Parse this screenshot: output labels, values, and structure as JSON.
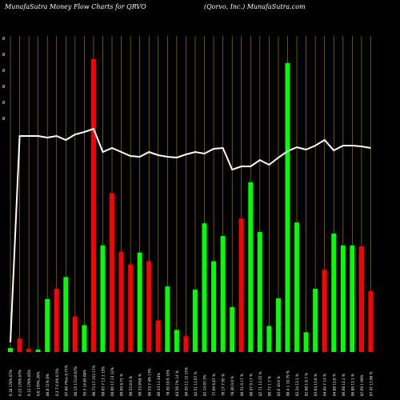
{
  "header": {
    "title": "MunafaSutra  Money Flow  Charts for QRVO",
    "subtitle": "(Qorvo,  Inc.) MunafaSutra.com"
  },
  "y_tick_labels": [
    "8",
    "8",
    "8",
    "8",
    "8",
    "8"
  ],
  "colors": {
    "background": "#000000",
    "up": "#00ff00",
    "down": "#ff0000",
    "grid": "#b8860b",
    "line": "#ffffff"
  },
  "chart_data": {
    "type": "bar",
    "title": "MunafaSutra  Money Flow  Charts for QRVO",
    "categories": [
      "0.18 170%.67%",
      "0.23 170%.87%",
      "0.12 170%.85%",
      "0.0 170%.20%",
      "80.0 11% 8%",
      "0.2 7 6 0% 0.5%",
      "97.00 7%m 6.77%",
      "00.15 17110 87%",
      "95.5 14 85.00%",
      "90.73 17.153 17%",
      "00.05 7 13.1 15%",
      "00.00 17.13 12%",
      "89.69 8.75 %",
      "90.53 8.6 %",
      "90.53 8%8 %",
      "80.53 7 4% 13%",
      "86.33 11 44%",
      "78.50 10.9 15%",
      "83.50 7% 14 %",
      "80.59 11.15 15%",
      "82.51 11.07 %",
      "82.14 07.3%",
      "77.69 6.87 %",
      "76.17 7.95 %",
      "78.30 0.0 %",
      "80.51 0.17 %",
      "80.57 0.17 %",
      "82.71 13.25 %",
      "80.77 1.7 %",
      "85.6 10.0 %",
      "80.4 1 10.79 %",
      "82.34 13.1 %",
      "82.98 1 8.7 %",
      "83.64 13.0 %",
      "84.44 7 13 %",
      "84.88 13.0 %",
      "86.08 13.1 %",
      "86.89 13.1 %",
      "87.69 1 09%",
      "87.47 13.90 %"
    ],
    "colors": [
      "green",
      "red",
      "red",
      "green",
      "green",
      "red",
      "green",
      "red",
      "green",
      "red",
      "green",
      "red",
      "red",
      "red",
      "green",
      "red",
      "red",
      "green",
      "green",
      "red",
      "green",
      "green",
      "green",
      "green",
      "green",
      "red",
      "green",
      "green",
      "green",
      "green",
      "green",
      "green",
      "green",
      "green",
      "red",
      "green",
      "green",
      "green",
      "red",
      "red"
    ],
    "volumes": [
      5,
      17,
      4,
      3,
      67,
      80,
      95,
      45,
      34,
      371,
      135,
      201,
      127,
      111,
      126,
      115,
      40,
      83,
      28,
      20,
      79,
      163,
      115,
      147,
      57,
      169,
      215,
      152,
      33,
      68,
      366,
      164,
      25,
      80,
      104,
      150,
      135,
      135,
      134,
      77
    ],
    "price_line": [
      12,
      270,
      270,
      270,
      268,
      270,
      265,
      272,
      275,
      279,
      250,
      255,
      250,
      245,
      244,
      250,
      246,
      244,
      243,
      247,
      250,
      248,
      254,
      255,
      228,
      232,
      232,
      240,
      234,
      243,
      251,
      256,
      253,
      258,
      265,
      252,
      258,
      258,
      257,
      255
    ],
    "y_range": [
      0,
      380
    ]
  }
}
